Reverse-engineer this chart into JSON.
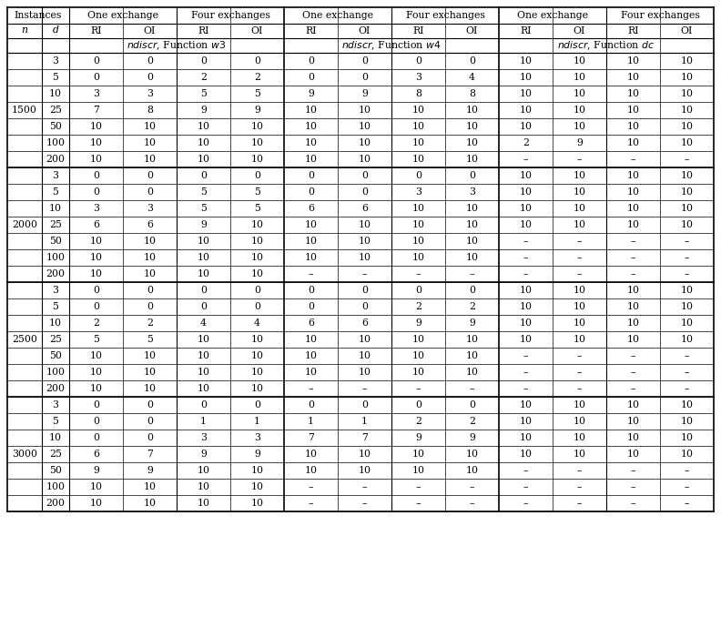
{
  "n_values": [
    1500,
    2000,
    2500,
    3000
  ],
  "d_values": [
    3,
    5,
    10,
    25,
    50,
    100,
    200
  ],
  "data": {
    "1500": {
      "3": [
        "0",
        "0",
        "0",
        "0",
        "0",
        "0",
        "0",
        "0",
        "10",
        "10",
        "10",
        "10"
      ],
      "5": [
        "0",
        "0",
        "2",
        "2",
        "0",
        "0",
        "3",
        "4",
        "10",
        "10",
        "10",
        "10"
      ],
      "10": [
        "3",
        "3",
        "5",
        "5",
        "9",
        "9",
        "8",
        "8",
        "10",
        "10",
        "10",
        "10"
      ],
      "25": [
        "7",
        "8",
        "9",
        "9",
        "10",
        "10",
        "10",
        "10",
        "10",
        "10",
        "10",
        "10"
      ],
      "50": [
        "10",
        "10",
        "10",
        "10",
        "10",
        "10",
        "10",
        "10",
        "10",
        "10",
        "10",
        "10"
      ],
      "100": [
        "10",
        "10",
        "10",
        "10",
        "10",
        "10",
        "10",
        "10",
        "2",
        "9",
        "10",
        "10"
      ],
      "200": [
        "10",
        "10",
        "10",
        "10",
        "10",
        "10",
        "10",
        "10",
        "–",
        "–",
        "–",
        "–"
      ]
    },
    "2000": {
      "3": [
        "0",
        "0",
        "0",
        "0",
        "0",
        "0",
        "0",
        "0",
        "10",
        "10",
        "10",
        "10"
      ],
      "5": [
        "0",
        "0",
        "5",
        "5",
        "0",
        "0",
        "3",
        "3",
        "10",
        "10",
        "10",
        "10"
      ],
      "10": [
        "3",
        "3",
        "5",
        "5",
        "6",
        "6",
        "10",
        "10",
        "10",
        "10",
        "10",
        "10"
      ],
      "25": [
        "6",
        "6",
        "9",
        "10",
        "10",
        "10",
        "10",
        "10",
        "10",
        "10",
        "10",
        "10"
      ],
      "50": [
        "10",
        "10",
        "10",
        "10",
        "10",
        "10",
        "10",
        "10",
        "–",
        "–",
        "–",
        "–"
      ],
      "100": [
        "10",
        "10",
        "10",
        "10",
        "10",
        "10",
        "10",
        "10",
        "–",
        "–",
        "–",
        "–"
      ],
      "200": [
        "10",
        "10",
        "10",
        "10",
        "–",
        "–",
        "–",
        "–",
        "–",
        "–",
        "–",
        "–"
      ]
    },
    "2500": {
      "3": [
        "0",
        "0",
        "0",
        "0",
        "0",
        "0",
        "0",
        "0",
        "10",
        "10",
        "10",
        "10"
      ],
      "5": [
        "0",
        "0",
        "0",
        "0",
        "0",
        "0",
        "2",
        "2",
        "10",
        "10",
        "10",
        "10"
      ],
      "10": [
        "2",
        "2",
        "4",
        "4",
        "6",
        "6",
        "9",
        "9",
        "10",
        "10",
        "10",
        "10"
      ],
      "25": [
        "5",
        "5",
        "10",
        "10",
        "10",
        "10",
        "10",
        "10",
        "10",
        "10",
        "10",
        "10"
      ],
      "50": [
        "10",
        "10",
        "10",
        "10",
        "10",
        "10",
        "10",
        "10",
        "–",
        "–",
        "–",
        "–"
      ],
      "100": [
        "10",
        "10",
        "10",
        "10",
        "10",
        "10",
        "10",
        "10",
        "–",
        "–",
        "–",
        "–"
      ],
      "200": [
        "10",
        "10",
        "10",
        "10",
        "–",
        "–",
        "–",
        "–",
        "–",
        "–",
        "–",
        "–"
      ]
    },
    "3000": {
      "3": [
        "0",
        "0",
        "0",
        "0",
        "0",
        "0",
        "0",
        "0",
        "10",
        "10",
        "10",
        "10"
      ],
      "5": [
        "0",
        "0",
        "1",
        "1",
        "1",
        "1",
        "2",
        "2",
        "10",
        "10",
        "10",
        "10"
      ],
      "10": [
        "0",
        "0",
        "3",
        "3",
        "7",
        "7",
        "9",
        "9",
        "10",
        "10",
        "10",
        "10"
      ],
      "25": [
        "6",
        "7",
        "9",
        "9",
        "10",
        "10",
        "10",
        "10",
        "10",
        "10",
        "10",
        "10"
      ],
      "50": [
        "9",
        "9",
        "10",
        "10",
        "10",
        "10",
        "10",
        "10",
        "–",
        "–",
        "–",
        "–"
      ],
      "100": [
        "10",
        "10",
        "10",
        "10",
        "–",
        "–",
        "–",
        "–",
        "–",
        "–",
        "–",
        "–"
      ],
      "200": [
        "10",
        "10",
        "10",
        "10",
        "–",
        "–",
        "–",
        "–",
        "–",
        "–",
        "–",
        "–"
      ]
    }
  },
  "font_size": 7.8,
  "header_font_size": 7.8,
  "fig_width": 7.92,
  "fig_height": 6.89,
  "dpi": 100
}
